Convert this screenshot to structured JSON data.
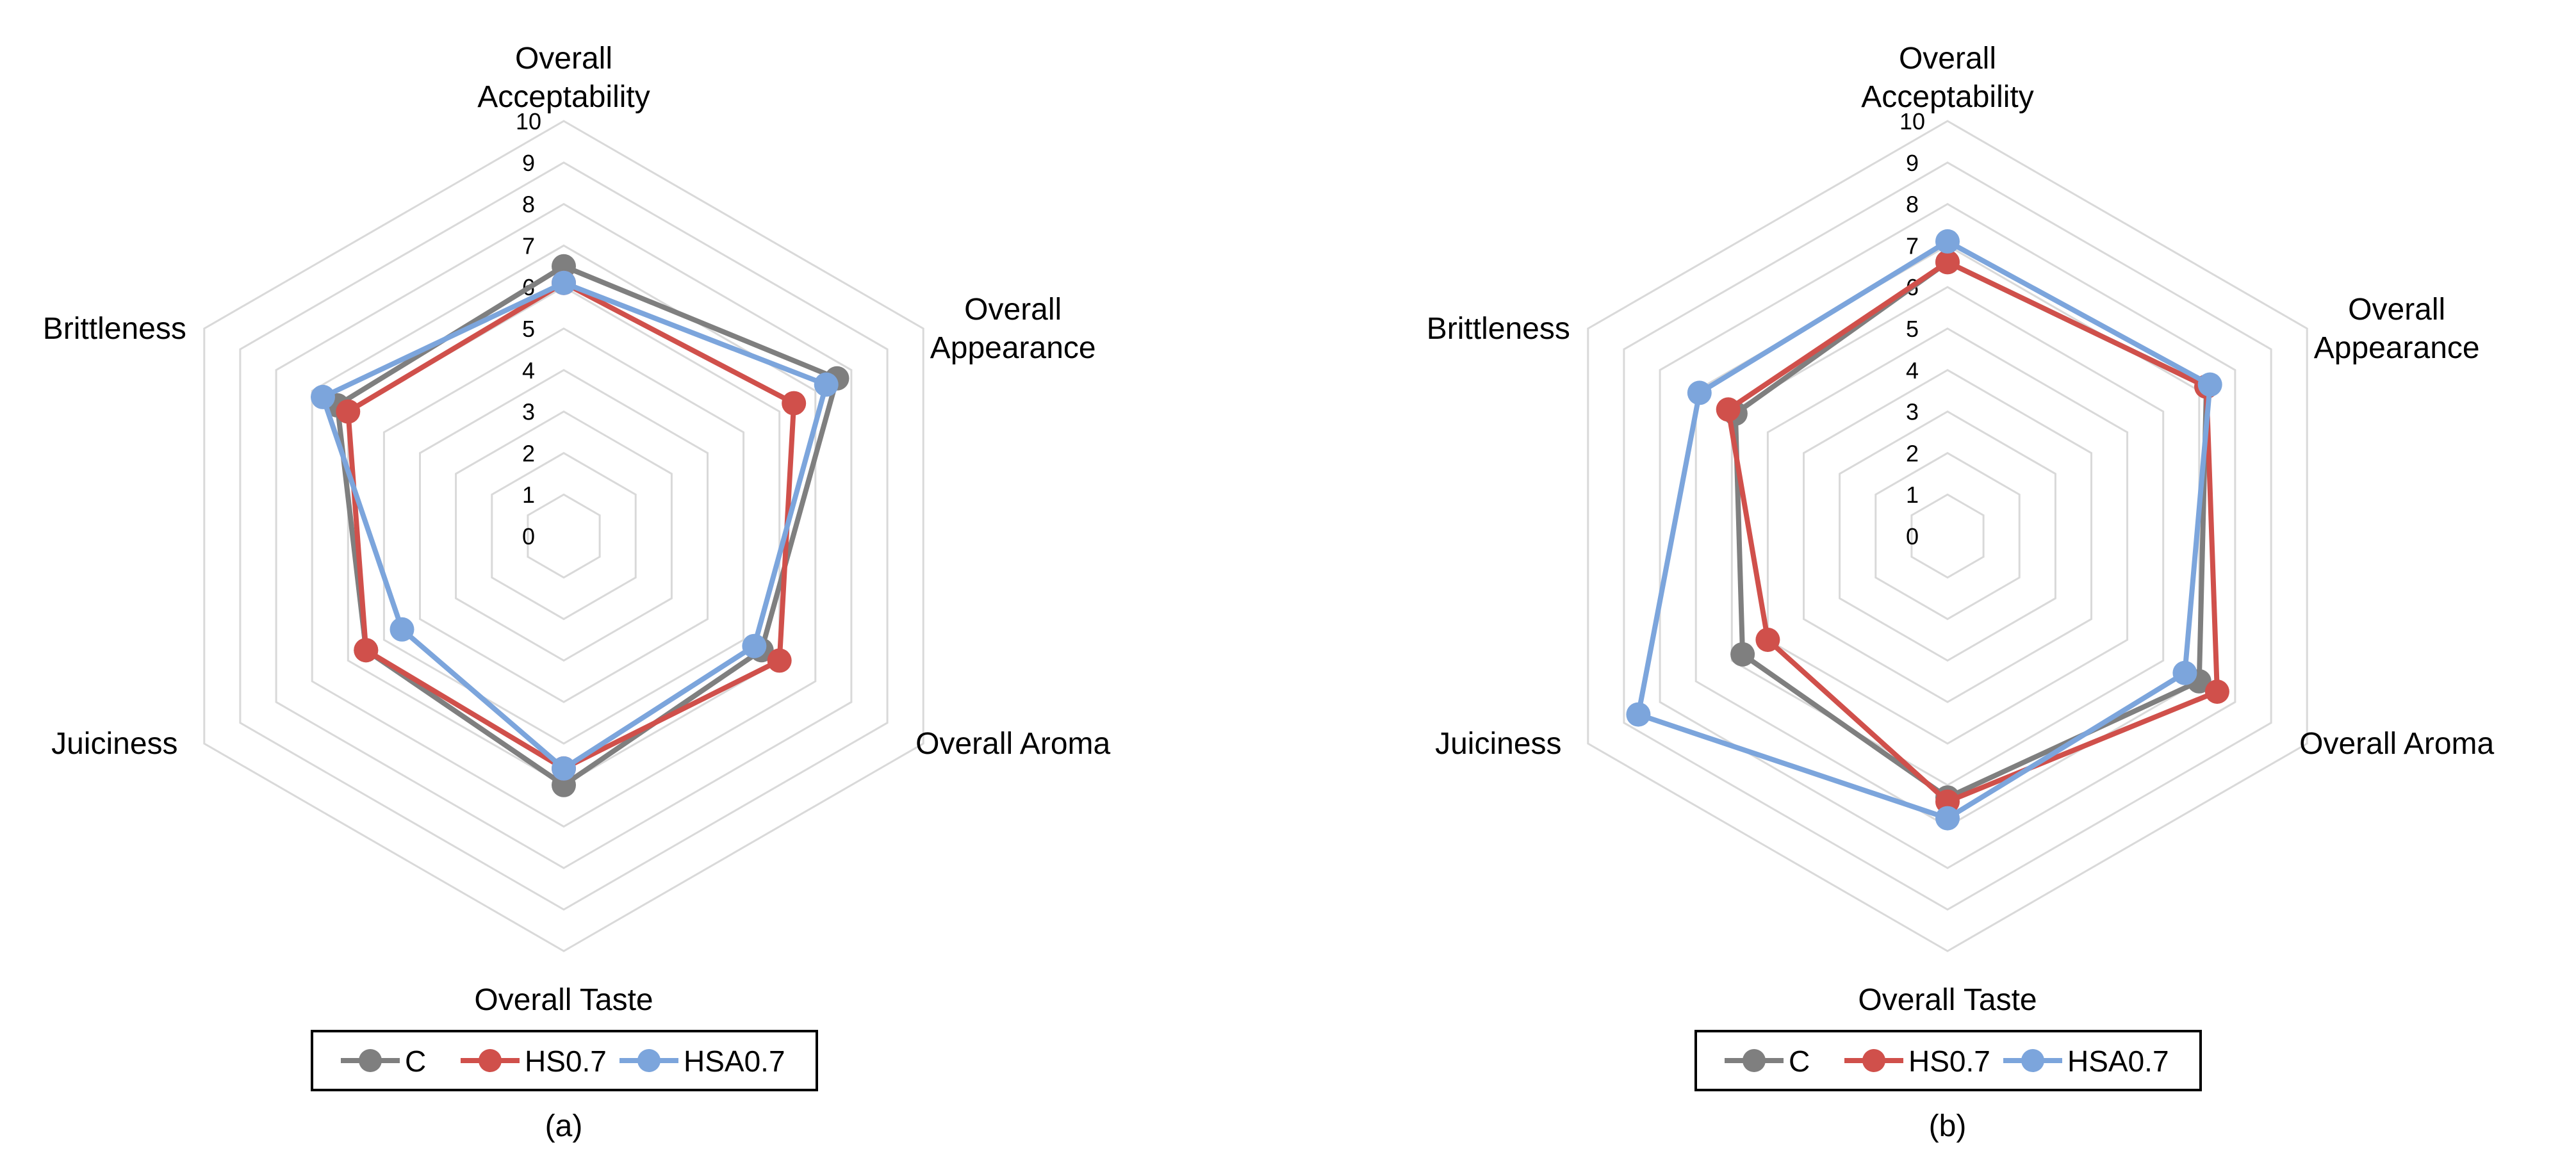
{
  "chart_data": [
    {
      "type": "radar",
      "panel_label": "(a)",
      "axes": [
        {
          "label_lines": [
            "Overall",
            "Acceptability"
          ]
        },
        {
          "label_lines": [
            "Overall",
            "Appearance"
          ]
        },
        {
          "label_lines": [
            "Overall Aroma"
          ]
        },
        {
          "label_lines": [
            "Overall Taste"
          ]
        },
        {
          "label_lines": [
            "Juiciness"
          ]
        },
        {
          "label_lines": [
            "Brittleness"
          ]
        }
      ],
      "range": [
        0,
        10
      ],
      "ticks": [
        "0",
        "1",
        "2",
        "3",
        "4",
        "5",
        "6",
        "7",
        "8",
        "9",
        "10"
      ],
      "grid": true,
      "legend_position": "bottom",
      "series": [
        {
          "name": "C",
          "color": "#7f7f7f",
          "values": [
            6.5,
            7.6,
            5.5,
            6.0,
            5.5,
            6.3
          ]
        },
        {
          "name": "HS0.7",
          "color": "#d0504b",
          "values": [
            6.1,
            6.4,
            6.0,
            5.6,
            5.5,
            6.0
          ]
        },
        {
          "name": "HSA0.7",
          "color": "#7ca5dc",
          "values": [
            6.1,
            7.3,
            5.3,
            5.6,
            4.5,
            6.7
          ]
        }
      ]
    },
    {
      "type": "radar",
      "panel_label": "(b)",
      "axes": [
        {
          "label_lines": [
            "Overall",
            "Acceptability"
          ]
        },
        {
          "label_lines": [
            "Overall",
            "Appearance"
          ]
        },
        {
          "label_lines": [
            "Overall Aroma"
          ]
        },
        {
          "label_lines": [
            "Overall Taste"
          ]
        },
        {
          "label_lines": [
            "Juiciness"
          ]
        },
        {
          "label_lines": [
            "Brittleness"
          ]
        }
      ],
      "range": [
        0,
        10
      ],
      "ticks": [
        "0",
        "1",
        "2",
        "3",
        "4",
        "5",
        "6",
        "7",
        "8",
        "9",
        "10"
      ],
      "grid": true,
      "legend_position": "bottom",
      "series": [
        {
          "name": "C",
          "color": "#7f7f7f",
          "values": [
            6.6,
            7.2,
            7.0,
            6.3,
            5.7,
            5.9
          ]
        },
        {
          "name": "HS0.7",
          "color": "#d0504b",
          "values": [
            6.6,
            7.2,
            7.5,
            6.4,
            5.0,
            6.1
          ]
        },
        {
          "name": "HSA0.7",
          "color": "#7ca5dc",
          "values": [
            7.1,
            7.3,
            6.6,
            6.8,
            8.6,
            6.9
          ]
        }
      ]
    }
  ]
}
